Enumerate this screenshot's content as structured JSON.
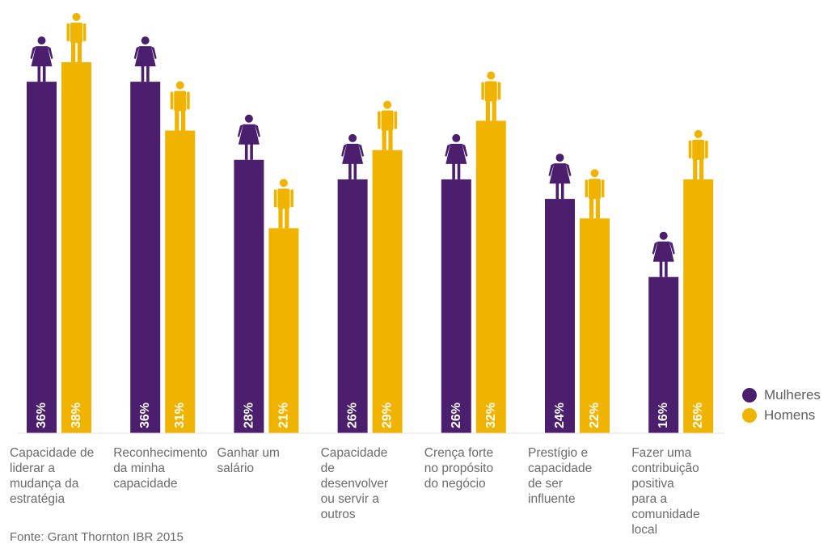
{
  "chart_data": {
    "type": "bar",
    "categories": [
      "Capacidade de\nliderar a\nmudança da\nestratégia",
      "Reconhecimento\nda minha\ncapacidade",
      "Ganhar um\nsalário",
      "Capacidade\nde\ndesenvolver\nou servir a\noutros",
      "Crença forte\nno propósito\ndo negócio",
      "Prestígio e\ncapacidade\nde ser\ninfluente",
      "Fazer uma\ncontribuição\npositiva\npara a\ncomunidade\nlocal"
    ],
    "series": [
      {
        "name": "Mulheres",
        "color": "#4b1f6e",
        "icon": "woman-icon",
        "values": [
          36,
          36,
          28,
          26,
          26,
          24,
          16
        ],
        "labels": [
          "36%",
          "36%",
          "28%",
          "26%",
          "26%",
          "24%",
          "16%"
        ]
      },
      {
        "name": "Homens",
        "color": "#f0b400",
        "icon": "man-icon",
        "values": [
          38,
          31,
          21,
          29,
          32,
          22,
          26
        ],
        "labels": [
          "38%",
          "31%",
          "21%",
          "29%",
          "32%",
          "22%",
          "26%"
        ]
      }
    ],
    "ylim": [
      0,
      40
    ],
    "grid": false,
    "legend": "right"
  },
  "source": "Fonte: Grant Thornton IBR 2015"
}
